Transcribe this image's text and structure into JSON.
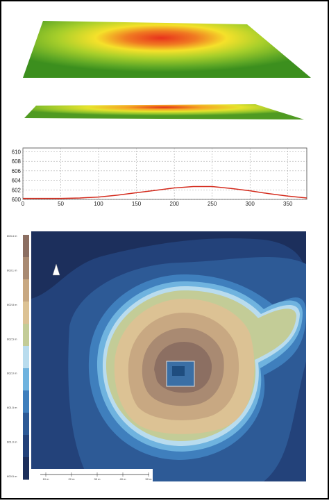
{
  "chart_data": {
    "type": "line",
    "x": [
      0,
      25,
      50,
      75,
      100,
      125,
      150,
      175,
      200,
      225,
      250,
      275,
      300,
      325,
      350,
      375
    ],
    "series": [
      {
        "color": "#d42a1c",
        "values": [
          600.2,
          600.2,
          600.2,
          600.3,
          600.5,
          600.9,
          601.4,
          601.9,
          602.4,
          602.7,
          602.7,
          602.3,
          601.8,
          601.2,
          600.7,
          600.3
        ]
      }
    ],
    "xlim": [
      0,
      375
    ],
    "ylim": [
      600,
      610.8
    ],
    "xticks": [
      0,
      50,
      100,
      150,
      200,
      250,
      300,
      350
    ],
    "yticks": [
      600,
      602,
      604,
      606,
      608,
      610
    ],
    "grid": true
  },
  "map": {
    "legend_labels": [
      "603.4 m",
      "603.1 m",
      "602.8 m",
      "602.5 m",
      "602.0 m",
      "601.5 m",
      "601.0 m",
      "600.5 m"
    ],
    "scale_labels": [
      "10 m",
      "20 m",
      "30 m",
      "40 m",
      "50 m"
    ]
  }
}
